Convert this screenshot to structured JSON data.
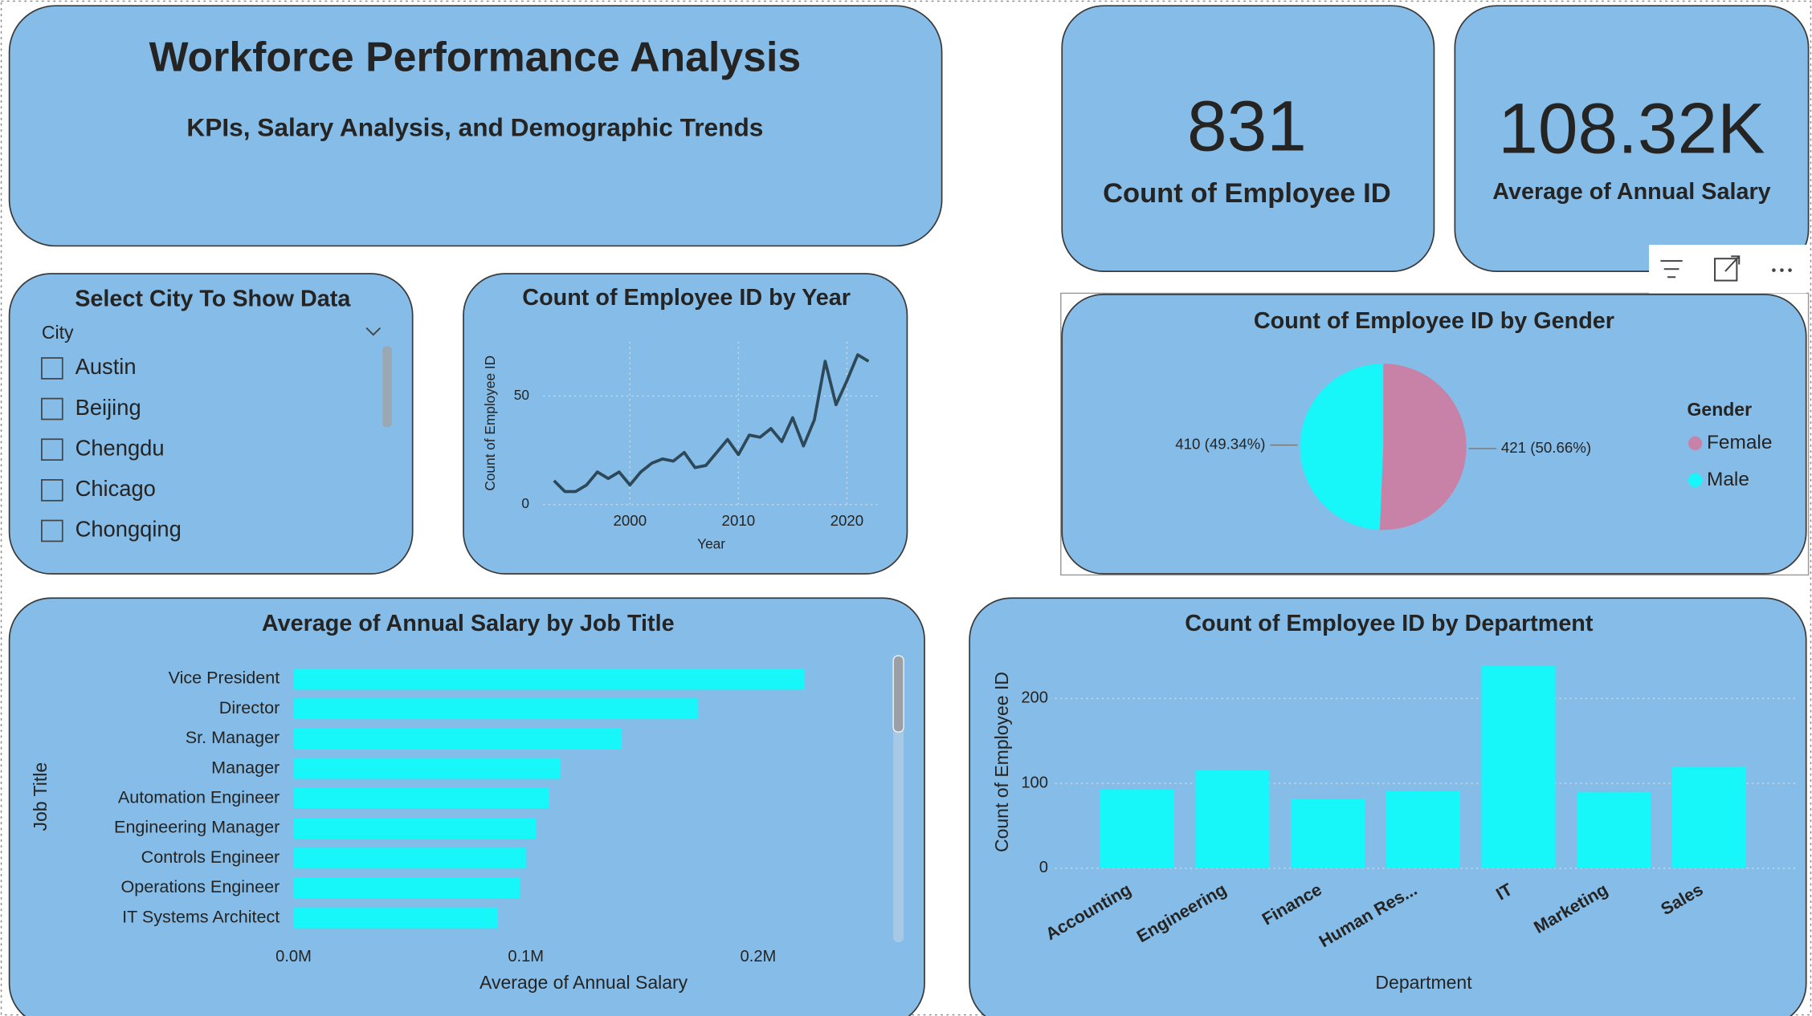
{
  "header": {
    "title": "Workforce Performance Analysis",
    "subtitle": "KPIs, Salary Analysis, and Demographic Trends"
  },
  "kpis": [
    {
      "value": "831",
      "label": "Count of Employee ID"
    },
    {
      "value": "108.32K",
      "label": "Average of Annual Salary"
    }
  ],
  "slicer": {
    "title": "Select City To Show Data",
    "field": "City",
    "items": [
      "Austin",
      "Beijing",
      "Chengdu",
      "Chicago",
      "Chongqing"
    ]
  },
  "chart_data": [
    {
      "type": "line",
      "title": "Count of Employee ID by Year",
      "xlabel": "Year",
      "ylabel": "Count of Employee ID",
      "x": [
        1993,
        1994,
        1995,
        1996,
        1997,
        1998,
        1999,
        2000,
        2001,
        2002,
        2003,
        2004,
        2005,
        2006,
        2007,
        2008,
        2009,
        2010,
        2011,
        2012,
        2013,
        2014,
        2015,
        2016,
        2017,
        2018,
        2019,
        2020,
        2021,
        2022
      ],
      "values": [
        11,
        6,
        6,
        9,
        15,
        12,
        15,
        9,
        15,
        19,
        21,
        20,
        24,
        17,
        18,
        24,
        30,
        23,
        32,
        31,
        35,
        29,
        40,
        27,
        39,
        66,
        46,
        57,
        69,
        66
      ],
      "color": "#2f4858",
      "xlim": [
        1992,
        2023
      ],
      "xticks": [
        2000,
        2010,
        2020
      ],
      "ylim": [
        0,
        75
      ],
      "yticks": [
        0,
        50
      ],
      "grid": true
    },
    {
      "type": "pie",
      "title": "Count of Employee ID by Gender",
      "legend_title": "Gender",
      "categories": [
        "Female",
        "Male"
      ],
      "values": [
        421,
        410
      ],
      "value_labels": [
        "421 (50.66%)",
        "410 (49.34%)"
      ],
      "colors": [
        "#c882a8",
        "#17f6f8"
      ],
      "legend": "right"
    },
    {
      "type": "bar",
      "orientation": "horizontal",
      "title": "Average of Annual Salary by Job Title",
      "xlabel": "Average of Annual Salary",
      "ylabel": "Job Title",
      "categories": [
        "Vice President",
        "Director",
        "Sr. Manager",
        "Manager",
        "Automation Engineer",
        "Engineering Manager",
        "Controls Engineer",
        "Operations Engineer",
        "IT Systems Architect"
      ],
      "values": [
        220000,
        174000,
        141300,
        115000,
        110000,
        104500,
        100000,
        97500,
        88000
      ],
      "color": "#17f6f8",
      "xlim": [
        0,
        255000
      ],
      "xticks": [
        {
          "value": 0,
          "label": "0.0M"
        },
        {
          "value": 100000,
          "label": "0.1M"
        },
        {
          "value": 200000,
          "label": "0.2M"
        }
      ],
      "grid": false
    },
    {
      "type": "bar",
      "orientation": "vertical",
      "title": "Count of Employee ID by Department",
      "xlabel": "Department",
      "ylabel": "Count of Employee ID",
      "categories": [
        "Accounting",
        "Engineering",
        "Finance",
        "Human Res...",
        "IT",
        "Marketing",
        "Sales"
      ],
      "values": [
        93,
        116,
        82,
        91,
        239,
        90,
        120
      ],
      "color": "#17f6f8",
      "ylim": [
        0,
        250
      ],
      "yticks": [
        0,
        100,
        200
      ],
      "grid": true
    }
  ]
}
